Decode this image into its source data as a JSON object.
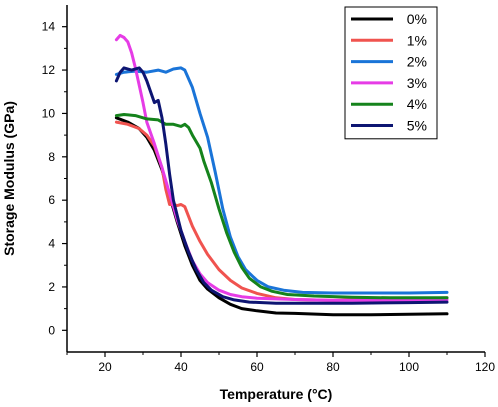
{
  "chart_data": {
    "type": "line",
    "title": "",
    "xlabel": "Temperature (°C)",
    "ylabel": "Storage Modulus (GPa)",
    "xlim": [
      10,
      120
    ],
    "ylim": [
      -1,
      15
    ],
    "x_ticks": [
      "20",
      "40",
      "60",
      "80",
      "100",
      "120"
    ],
    "y_ticks": [
      "0",
      "2",
      "4",
      "6",
      "8",
      "10",
      "12",
      "14"
    ],
    "grid": false,
    "legend_position": "top-right",
    "series": [
      {
        "name": "0%",
        "color": "#000000",
        "points": [
          [
            23,
            9.8
          ],
          [
            26,
            9.6
          ],
          [
            29,
            9.3
          ],
          [
            31,
            8.9
          ],
          [
            33,
            8.3
          ],
          [
            35,
            7.4
          ],
          [
            37,
            6.2
          ],
          [
            39,
            5.0
          ],
          [
            41,
            3.9
          ],
          [
            43,
            3.0
          ],
          [
            45,
            2.3
          ],
          [
            47,
            1.9
          ],
          [
            50,
            1.5
          ],
          [
            53,
            1.2
          ],
          [
            56,
            1.0
          ],
          [
            60,
            0.9
          ],
          [
            65,
            0.8
          ],
          [
            70,
            0.78
          ],
          [
            80,
            0.72
          ],
          [
            90,
            0.72
          ],
          [
            100,
            0.74
          ],
          [
            110,
            0.76
          ]
        ]
      },
      {
        "name": "1%",
        "color": "#f0534f",
        "points": [
          [
            23,
            9.6
          ],
          [
            26,
            9.5
          ],
          [
            29,
            9.3
          ],
          [
            31,
            9.0
          ],
          [
            33,
            8.5
          ],
          [
            35,
            7.5
          ],
          [
            36,
            6.5
          ],
          [
            37,
            5.8
          ],
          [
            38,
            5.8
          ],
          [
            39,
            5.75
          ],
          [
            40,
            5.8
          ],
          [
            41,
            5.7
          ],
          [
            43,
            4.8
          ],
          [
            45,
            4.1
          ],
          [
            47,
            3.5
          ],
          [
            50,
            2.8
          ],
          [
            53,
            2.3
          ],
          [
            56,
            1.95
          ],
          [
            60,
            1.7
          ],
          [
            65,
            1.5
          ],
          [
            70,
            1.42
          ],
          [
            80,
            1.38
          ],
          [
            90,
            1.42
          ],
          [
            100,
            1.45
          ],
          [
            110,
            1.5
          ]
        ]
      },
      {
        "name": "2%",
        "color": "#1a74d8",
        "points": [
          [
            23,
            11.8
          ],
          [
            25,
            11.9
          ],
          [
            28,
            11.95
          ],
          [
            31,
            11.9
          ],
          [
            34,
            12.0
          ],
          [
            36,
            11.9
          ],
          [
            38,
            12.05
          ],
          [
            40,
            12.1
          ],
          [
            41,
            12.0
          ],
          [
            43,
            11.2
          ],
          [
            45,
            10.0
          ],
          [
            47,
            8.9
          ],
          [
            49,
            7.3
          ],
          [
            51,
            5.6
          ],
          [
            53,
            4.3
          ],
          [
            55,
            3.4
          ],
          [
            57,
            2.8
          ],
          [
            60,
            2.3
          ],
          [
            63,
            2.0
          ],
          [
            67,
            1.85
          ],
          [
            72,
            1.75
          ],
          [
            80,
            1.72
          ],
          [
            90,
            1.72
          ],
          [
            100,
            1.72
          ],
          [
            110,
            1.75
          ]
        ]
      },
      {
        "name": "3%",
        "color": "#e63ce6",
        "points": [
          [
            23,
            13.4
          ],
          [
            24,
            13.6
          ],
          [
            25,
            13.5
          ],
          [
            26,
            13.3
          ],
          [
            27,
            12.8
          ],
          [
            28,
            12.1
          ],
          [
            29,
            11.3
          ],
          [
            30,
            10.5
          ],
          [
            31,
            9.6
          ],
          [
            33,
            8.6
          ],
          [
            35,
            7.5
          ],
          [
            37,
            6.3
          ],
          [
            39,
            5.1
          ],
          [
            41,
            4.1
          ],
          [
            43,
            3.2
          ],
          [
            45,
            2.6
          ],
          [
            47,
            2.2
          ],
          [
            50,
            1.85
          ],
          [
            53,
            1.65
          ],
          [
            56,
            1.55
          ],
          [
            60,
            1.48
          ],
          [
            70,
            1.42
          ],
          [
            80,
            1.38
          ],
          [
            90,
            1.38
          ],
          [
            100,
            1.38
          ],
          [
            110,
            1.4
          ]
        ]
      },
      {
        "name": "4%",
        "color": "#15831c",
        "points": [
          [
            23,
            9.9
          ],
          [
            25,
            9.95
          ],
          [
            28,
            9.9
          ],
          [
            31,
            9.75
          ],
          [
            34,
            9.7
          ],
          [
            36,
            9.5
          ],
          [
            38,
            9.5
          ],
          [
            40,
            9.4
          ],
          [
            41,
            9.5
          ],
          [
            42,
            9.35
          ],
          [
            43,
            9.0
          ],
          [
            45,
            8.4
          ],
          [
            46,
            7.8
          ],
          [
            48,
            6.8
          ],
          [
            50,
            5.6
          ],
          [
            52,
            4.5
          ],
          [
            54,
            3.6
          ],
          [
            56,
            2.9
          ],
          [
            58,
            2.4
          ],
          [
            61,
            2.0
          ],
          [
            64,
            1.8
          ],
          [
            68,
            1.65
          ],
          [
            75,
            1.58
          ],
          [
            85,
            1.52
          ],
          [
            95,
            1.5
          ],
          [
            110,
            1.5
          ]
        ]
      },
      {
        "name": "5%",
        "color": "#0d1572",
        "points": [
          [
            23,
            11.5
          ],
          [
            24,
            11.9
          ],
          [
            25,
            12.1
          ],
          [
            27,
            12.0
          ],
          [
            29,
            12.1
          ],
          [
            30,
            11.9
          ],
          [
            31,
            11.5
          ],
          [
            32,
            11.0
          ],
          [
            33,
            10.5
          ],
          [
            34,
            10.6
          ],
          [
            35,
            9.8
          ],
          [
            36,
            8.6
          ],
          [
            37,
            7.2
          ],
          [
            38,
            6.0
          ],
          [
            40,
            4.6
          ],
          [
            42,
            3.6
          ],
          [
            44,
            2.8
          ],
          [
            46,
            2.2
          ],
          [
            48,
            1.85
          ],
          [
            51,
            1.55
          ],
          [
            54,
            1.4
          ],
          [
            58,
            1.3
          ],
          [
            65,
            1.25
          ],
          [
            75,
            1.25
          ],
          [
            85,
            1.25
          ],
          [
            100,
            1.28
          ],
          [
            110,
            1.3
          ]
        ]
      }
    ]
  }
}
